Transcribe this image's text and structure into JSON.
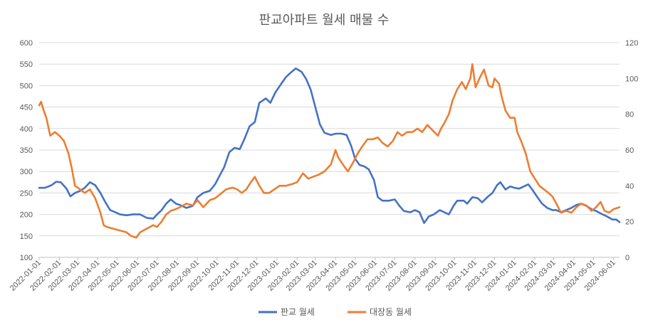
{
  "chart_data": {
    "type": "line",
    "title": "판교아파트 월세 매물 수",
    "y_left": {
      "min": 100,
      "max": 600,
      "ticks": [
        100,
        150,
        200,
        250,
        300,
        350,
        400,
        450,
        500,
        550,
        600
      ]
    },
    "y_right": {
      "min": 0,
      "max": 120,
      "ticks": [
        0,
        20,
        40,
        60,
        80,
        100,
        120
      ]
    },
    "x_start": "2022-01-01",
    "x_end": "2024-06-10",
    "x_ticks": [
      "2022-01-01",
      "2022-02-01",
      "2022-03-01",
      "2022-04-01",
      "2022-05-01",
      "2022-06-01",
      "2022-07-01",
      "2022-08-01",
      "2022-09-01",
      "2022-10-01",
      "2022-11-01",
      "2022-12-01",
      "2023-01-01",
      "2023-02-01",
      "2023-03-01",
      "2023-04-01",
      "2023-05-01",
      "2023-06-01",
      "2023-07-01",
      "2023-08-01",
      "2023-09-01",
      "2023-10-01",
      "2023-11-01",
      "2023-12-01",
      "2024-01-01",
      "2024-02-01",
      "2024-03-01",
      "2024-04-01",
      "2024-05-01",
      "2024-06-01"
    ],
    "grid": true,
    "legend_position": "bottom",
    "series": [
      {
        "name": "판교 월세",
        "axis": "left",
        "color": "#4472C4",
        "points": [
          [
            "2022-01-01",
            262
          ],
          [
            "2022-01-10",
            262
          ],
          [
            "2022-01-20",
            268
          ],
          [
            "2022-01-27",
            276
          ],
          [
            "2022-02-03",
            275
          ],
          [
            "2022-02-12",
            260
          ],
          [
            "2022-02-18",
            242
          ],
          [
            "2022-02-25",
            250
          ],
          [
            "2022-03-05",
            255
          ],
          [
            "2022-03-12",
            262
          ],
          [
            "2022-03-20",
            275
          ],
          [
            "2022-03-28",
            268
          ],
          [
            "2022-04-05",
            250
          ],
          [
            "2022-04-12",
            230
          ],
          [
            "2022-04-20",
            210
          ],
          [
            "2022-04-28",
            205
          ],
          [
            "2022-05-05",
            200
          ],
          [
            "2022-05-15",
            198
          ],
          [
            "2022-05-25",
            200
          ],
          [
            "2022-06-05",
            200
          ],
          [
            "2022-06-15",
            192
          ],
          [
            "2022-06-25",
            190
          ],
          [
            "2022-07-01",
            200
          ],
          [
            "2022-07-08",
            210
          ],
          [
            "2022-07-15",
            225
          ],
          [
            "2022-07-22",
            235
          ],
          [
            "2022-07-30",
            225
          ],
          [
            "2022-08-05",
            222
          ],
          [
            "2022-08-15",
            215
          ],
          [
            "2022-08-25",
            220
          ],
          [
            "2022-09-01",
            240
          ],
          [
            "2022-09-10",
            250
          ],
          [
            "2022-09-20",
            255
          ],
          [
            "2022-09-28",
            270
          ],
          [
            "2022-10-05",
            290
          ],
          [
            "2022-10-12",
            310
          ],
          [
            "2022-10-20",
            345
          ],
          [
            "2022-10-28",
            355
          ],
          [
            "2022-11-05",
            352
          ],
          [
            "2022-11-12",
            375
          ],
          [
            "2022-11-20",
            405
          ],
          [
            "2022-11-28",
            415
          ],
          [
            "2022-12-05",
            460
          ],
          [
            "2022-12-15",
            470
          ],
          [
            "2022-12-22",
            460
          ],
          [
            "2022-12-30",
            485
          ],
          [
            "2023-01-08",
            505
          ],
          [
            "2023-01-15",
            520
          ],
          [
            "2023-01-22",
            530
          ],
          [
            "2023-01-30",
            540
          ],
          [
            "2023-02-08",
            532
          ],
          [
            "2023-02-15",
            515
          ],
          [
            "2023-02-22",
            490
          ],
          [
            "2023-03-01",
            450
          ],
          [
            "2023-03-08",
            410
          ],
          [
            "2023-03-15",
            390
          ],
          [
            "2023-03-25",
            385
          ],
          [
            "2023-04-01",
            388
          ],
          [
            "2023-04-10",
            388
          ],
          [
            "2023-04-18",
            385
          ],
          [
            "2023-04-25",
            360
          ],
          [
            "2023-05-01",
            330
          ],
          [
            "2023-05-08",
            315
          ],
          [
            "2023-05-15",
            312
          ],
          [
            "2023-05-22",
            305
          ],
          [
            "2023-05-30",
            280
          ],
          [
            "2023-06-05",
            240
          ],
          [
            "2023-06-12",
            232
          ],
          [
            "2023-06-22",
            232
          ],
          [
            "2023-07-01",
            235
          ],
          [
            "2023-07-08",
            220
          ],
          [
            "2023-07-15",
            208
          ],
          [
            "2023-07-25",
            205
          ],
          [
            "2023-08-01",
            210
          ],
          [
            "2023-08-08",
            205
          ],
          [
            "2023-08-15",
            180
          ],
          [
            "2023-08-22",
            195
          ],
          [
            "2023-08-30",
            200
          ],
          [
            "2023-09-08",
            210
          ],
          [
            "2023-09-15",
            205
          ],
          [
            "2023-09-22",
            200
          ],
          [
            "2023-09-30",
            222
          ],
          [
            "2023-10-05",
            232
          ],
          [
            "2023-10-15",
            232
          ],
          [
            "2023-10-20",
            225
          ],
          [
            "2023-10-28",
            240
          ],
          [
            "2023-11-05",
            238
          ],
          [
            "2023-11-12",
            228
          ],
          [
            "2023-11-20",
            240
          ],
          [
            "2023-11-28",
            250
          ],
          [
            "2023-12-05",
            268
          ],
          [
            "2023-12-10",
            275
          ],
          [
            "2023-12-18",
            258
          ],
          [
            "2023-12-25",
            265
          ],
          [
            "2024-01-01",
            262
          ],
          [
            "2024-01-08",
            260
          ],
          [
            "2024-01-15",
            265
          ],
          [
            "2024-01-22",
            270
          ],
          [
            "2024-01-28",
            258
          ],
          [
            "2024-02-05",
            240
          ],
          [
            "2024-02-12",
            225
          ],
          [
            "2024-02-20",
            215
          ],
          [
            "2024-02-28",
            210
          ],
          [
            "2024-03-05",
            210
          ],
          [
            "2024-03-12",
            205
          ],
          [
            "2024-03-20",
            210
          ],
          [
            "2024-03-28",
            215
          ],
          [
            "2024-04-05",
            222
          ],
          [
            "2024-04-12",
            225
          ],
          [
            "2024-04-20",
            220
          ],
          [
            "2024-04-28",
            212
          ],
          [
            "2024-05-05",
            208
          ],
          [
            "2024-05-15",
            200
          ],
          [
            "2024-05-22",
            195
          ],
          [
            "2024-05-30",
            188
          ],
          [
            "2024-06-05",
            188
          ],
          [
            "2024-06-10",
            182
          ]
        ]
      },
      {
        "name": "대장동 월세",
        "axis": "right",
        "color": "#ED7D31",
        "points": [
          [
            "2022-01-01",
            85
          ],
          [
            "2022-01-04",
            87
          ],
          [
            "2022-01-08",
            82
          ],
          [
            "2022-01-12",
            78
          ],
          [
            "2022-01-18",
            68
          ],
          [
            "2022-01-25",
            70
          ],
          [
            "2022-02-01",
            68
          ],
          [
            "2022-02-08",
            65
          ],
          [
            "2022-02-15",
            58
          ],
          [
            "2022-02-20",
            50
          ],
          [
            "2022-02-25",
            40
          ],
          [
            "2022-03-05",
            38
          ],
          [
            "2022-03-12",
            36
          ],
          [
            "2022-03-20",
            38
          ],
          [
            "2022-03-28",
            33
          ],
          [
            "2022-04-05",
            25
          ],
          [
            "2022-04-10",
            18
          ],
          [
            "2022-04-15",
            17
          ],
          [
            "2022-04-25",
            16
          ],
          [
            "2022-05-05",
            15
          ],
          [
            "2022-05-15",
            14
          ],
          [
            "2022-05-22",
            12
          ],
          [
            "2022-05-30",
            11
          ],
          [
            "2022-06-05",
            14
          ],
          [
            "2022-06-15",
            16
          ],
          [
            "2022-06-25",
            18
          ],
          [
            "2022-07-01",
            17
          ],
          [
            "2022-07-08",
            20
          ],
          [
            "2022-07-15",
            24
          ],
          [
            "2022-07-22",
            26
          ],
          [
            "2022-07-30",
            27
          ],
          [
            "2022-08-05",
            28
          ],
          [
            "2022-08-15",
            30
          ],
          [
            "2022-08-25",
            29
          ],
          [
            "2022-09-01",
            32
          ],
          [
            "2022-09-10",
            28
          ],
          [
            "2022-09-20",
            32
          ],
          [
            "2022-09-28",
            33
          ],
          [
            "2022-10-05",
            35
          ],
          [
            "2022-10-15",
            38
          ],
          [
            "2022-10-25",
            39
          ],
          [
            "2022-11-01",
            38
          ],
          [
            "2022-11-08",
            36
          ],
          [
            "2022-11-15",
            38
          ],
          [
            "2022-11-22",
            42
          ],
          [
            "2022-11-28",
            45
          ],
          [
            "2022-12-05",
            40
          ],
          [
            "2022-12-12",
            36
          ],
          [
            "2022-12-20",
            36
          ],
          [
            "2022-12-28",
            38
          ],
          [
            "2023-01-05",
            40
          ],
          [
            "2023-01-15",
            40
          ],
          [
            "2023-01-25",
            41
          ],
          [
            "2023-02-01",
            42
          ],
          [
            "2023-02-10",
            47
          ],
          [
            "2023-02-18",
            44
          ],
          [
            "2023-02-25",
            45
          ],
          [
            "2023-03-05",
            46
          ],
          [
            "2023-03-15",
            48
          ],
          [
            "2023-03-25",
            52
          ],
          [
            "2023-04-01",
            60
          ],
          [
            "2023-04-05",
            56
          ],
          [
            "2023-04-12",
            52
          ],
          [
            "2023-04-20",
            48
          ],
          [
            "2023-04-28",
            53
          ],
          [
            "2023-05-05",
            58
          ],
          [
            "2023-05-12",
            62
          ],
          [
            "2023-05-20",
            66
          ],
          [
            "2023-05-28",
            66
          ],
          [
            "2023-06-05",
            67
          ],
          [
            "2023-06-12",
            64
          ],
          [
            "2023-06-20",
            62
          ],
          [
            "2023-06-28",
            65
          ],
          [
            "2023-07-05",
            70
          ],
          [
            "2023-07-12",
            68
          ],
          [
            "2023-07-20",
            70
          ],
          [
            "2023-07-28",
            70
          ],
          [
            "2023-08-05",
            72
          ],
          [
            "2023-08-12",
            70
          ],
          [
            "2023-08-20",
            74
          ],
          [
            "2023-08-28",
            71
          ],
          [
            "2023-09-05",
            68
          ],
          [
            "2023-09-10",
            72
          ],
          [
            "2023-09-15",
            75
          ],
          [
            "2023-09-22",
            80
          ],
          [
            "2023-09-28",
            88
          ],
          [
            "2023-10-05",
            94
          ],
          [
            "2023-10-12",
            98
          ],
          [
            "2023-10-18",
            94
          ],
          [
            "2023-10-25",
            100
          ],
          [
            "2023-10-28",
            108
          ],
          [
            "2023-11-02",
            95
          ],
          [
            "2023-11-08",
            100
          ],
          [
            "2023-11-15",
            105
          ],
          [
            "2023-11-22",
            96
          ],
          [
            "2023-11-28",
            95
          ],
          [
            "2023-12-01",
            100
          ],
          [
            "2023-12-08",
            97
          ],
          [
            "2023-12-12",
            90
          ],
          [
            "2023-12-18",
            82
          ],
          [
            "2023-12-25",
            78
          ],
          [
            "2024-01-01",
            78
          ],
          [
            "2024-01-05",
            70
          ],
          [
            "2024-01-12",
            64
          ],
          [
            "2024-01-18",
            58
          ],
          [
            "2024-01-25",
            48
          ],
          [
            "2024-02-01",
            44
          ],
          [
            "2024-02-08",
            40
          ],
          [
            "2024-02-15",
            38
          ],
          [
            "2024-02-22",
            36
          ],
          [
            "2024-02-28",
            34
          ],
          [
            "2024-03-05",
            30
          ],
          [
            "2024-03-12",
            25
          ],
          [
            "2024-03-20",
            26
          ],
          [
            "2024-03-28",
            25
          ],
          [
            "2024-04-05",
            28
          ],
          [
            "2024-04-12",
            30
          ],
          [
            "2024-04-20",
            29
          ],
          [
            "2024-04-28",
            26
          ],
          [
            "2024-05-05",
            28
          ],
          [
            "2024-05-12",
            31
          ],
          [
            "2024-05-18",
            26
          ],
          [
            "2024-05-25",
            25
          ],
          [
            "2024-06-01",
            27
          ],
          [
            "2024-06-10",
            28
          ]
        ]
      }
    ]
  }
}
